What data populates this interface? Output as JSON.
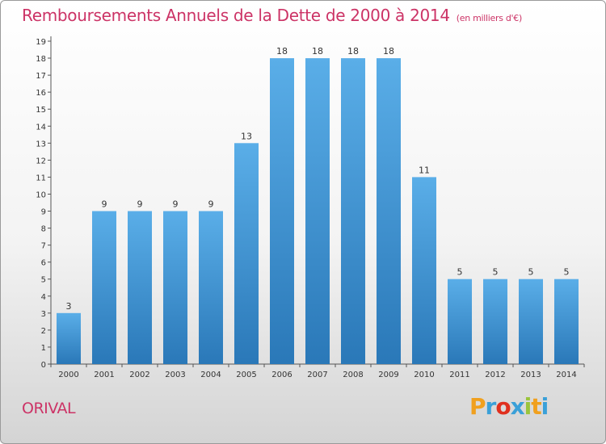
{
  "chart_data": {
    "type": "bar",
    "title": "Remboursements Annuels de la Dette de 2000 à 2014",
    "subtitle": "(en milliers d'€)",
    "categories": [
      "2000",
      "2001",
      "2002",
      "2003",
      "2004",
      "2005",
      "2006",
      "2007",
      "2008",
      "2009",
      "2010",
      "2011",
      "2012",
      "2013",
      "2014"
    ],
    "values": [
      3,
      9,
      9,
      9,
      9,
      13,
      18,
      18,
      18,
      18,
      11,
      5,
      5,
      5,
      5
    ],
    "ylim": [
      0,
      19
    ],
    "yticks": [
      0,
      1,
      2,
      3,
      4,
      5,
      6,
      7,
      8,
      9,
      10,
      11,
      12,
      13,
      14,
      15,
      16,
      17,
      18,
      19
    ],
    "grid": false,
    "legend": "none",
    "bar_color_top": "#5aaee8",
    "bar_color_bottom": "#2a78b8"
  },
  "footer": {
    "commune": "ORIVAL",
    "logo": "Proxiti",
    "logo_colors": [
      "#f0a01e",
      "#3aa0d8",
      "#e0301e",
      "#3aa0d8",
      "#9ac43c",
      "#f0a01e",
      "#3aa0d8"
    ]
  }
}
